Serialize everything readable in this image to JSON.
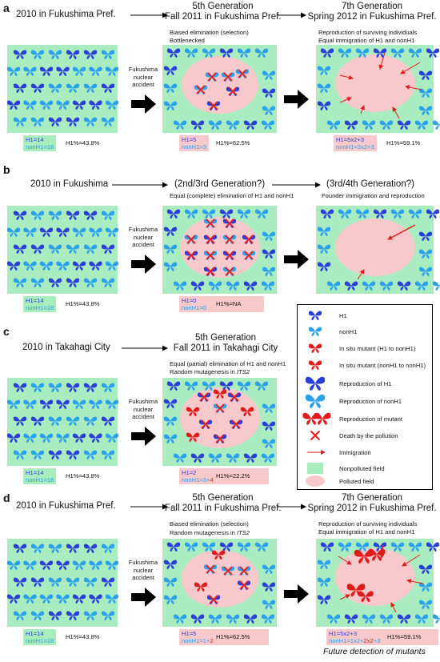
{
  "colors": {
    "h1": "#2a3fd8",
    "nonh1": "#2aa0ee",
    "mutant": "#e01b1b",
    "nonpolluted": "#a9ecbf",
    "polluted": "#f7c9cb"
  },
  "accident_label": "Fukushima\nnuclear\naccident",
  "panel_a": {
    "letter": "a",
    "t1": "2010 in Fukushima Pref.",
    "t2a": "5th Generation",
    "t2b": "Fall 2011 in Fukushima Pref.",
    "t3a": "7th Generation",
    "t3b": "Spring 2012 in Fukushima Pref.",
    "d2": "Biased elimination (selection)\nBottlenecked",
    "d3": "Reproduction of surviving individuals\nEqual immigration of H1 and nonH1",
    "s1_h1": "H1=14",
    "s1_non": "nonH1=18",
    "s1_pct": "H1%=43.8%",
    "s2_h1": "H1=5",
    "s2_non": "nonH1=3",
    "s2_pct": "H1%=62.5%",
    "s3_h1": "H1=5x2+3",
    "s3_non": "nonH1=3x2+3",
    "s3_pct": "H1%=59.1%"
  },
  "panel_b": {
    "letter": "b",
    "t1": "2010 in Fukushima",
    "t2": "(2nd/3rd Generation?)",
    "t3": "(3rd/4th Generation?)",
    "d2": "Equal (complete) elimination of H1 and nonH1",
    "d3": "Founder immigration and reproduction",
    "s1_h1": "H1=14",
    "s1_non": "nonH1=18",
    "s1_pct": "H1%=43.8%",
    "s2_h1": "H1=0",
    "s2_non": "nonH1=0",
    "s2_pct": "H1%=NA"
  },
  "panel_c": {
    "letter": "c",
    "t1": "2010 in Takahagi City",
    "t2a": "5th Generation",
    "t2b": "Fall 2011 in Takahagi City",
    "d2a": "Equal (partial) elimination of H1 and nonH1",
    "d2b": "Random mutagenesis in ",
    "d2b_it": "ITS2",
    "s1_h1": "H1=14",
    "s1_non": "nonH1=18",
    "s1_pct": "H1%=43.8%",
    "s2_h1": "H1=2",
    "s2_non": "nonH1=3+",
    "s2_mut": "4",
    "s2_pct": "H1%=22.2%"
  },
  "panel_d": {
    "letter": "d",
    "t1": "2010 in Fukushima Pref.",
    "t2a": "5th Generation",
    "t2b": "Fall 2011 in Fukushima Pref.",
    "t3a": "7th Generation",
    "t3b": "Spring 2012 in Fukushima Pref.",
    "d2a": "Biased elimination (selection)",
    "d2b": "Random mutagenesis in ",
    "d2b_it": "ITS2",
    "d3": "Reproduction of surviving individuals\nEqual immigration of H1 and nonH1",
    "s1_h1": "H1=14",
    "s1_non": "nonH1=18",
    "s1_pct": "H1%=43.8%",
    "s2_h1": "H1=5",
    "s2_non": "nonH1=1+",
    "s2_mut": "2",
    "s2_pct": "H1%=62.5%",
    "s3_h1": "H1=5x2+3",
    "s3_non_a": "nonH1=1x2+",
    "s3_mut": "2x2",
    "s3_non_b": "+3",
    "s3_pct": "H1%=59.1%",
    "future": "Future detection of mutants"
  },
  "legend": {
    "h1": "H1",
    "nonh1": "nonH1",
    "mut_h1": "In situ mutant (H1 to nonH1)",
    "mut_non": "In situ mutant (nonH1 to nonH1)",
    "rep_h1": "Reproduction of H1",
    "rep_non": "Reproduction of nonH1",
    "rep_mut": "Reproduction of mutant",
    "death": "Death by the pollution",
    "imm": "Immigration",
    "nonpolluted": "Nonpolluted field",
    "polluted": "Polluted field"
  }
}
